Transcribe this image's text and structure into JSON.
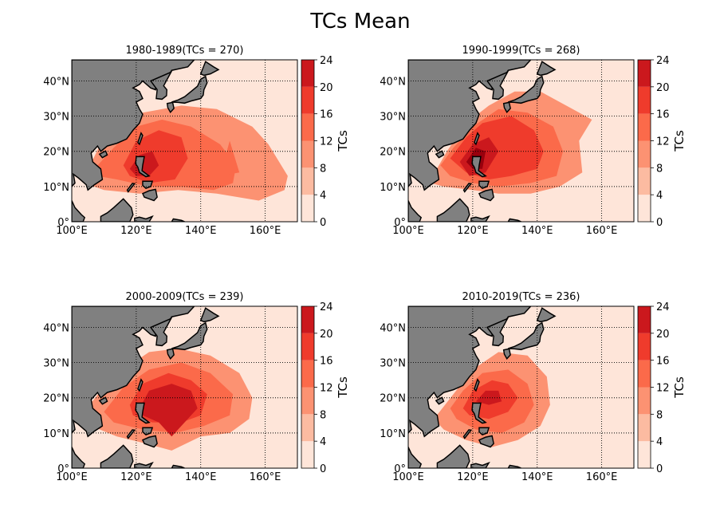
{
  "chart_data": {
    "type": "heatmap",
    "title": "TCs Mean",
    "colorbar": {
      "label": "TCs",
      "levels": [
        0,
        4,
        8,
        12,
        16,
        20,
        24
      ],
      "colors": [
        "#fee5d9",
        "#fcbba1",
        "#fc9272",
        "#fb6a4a",
        "#ef3b2c",
        "#cb181d",
        "#99000d"
      ]
    },
    "map": {
      "lon_range": [
        100,
        170
      ],
      "lat_range": [
        0,
        46
      ],
      "lon_ticks": [
        100,
        120,
        140,
        160
      ],
      "lon_tick_labels": [
        "100°E",
        "120°E",
        "140°E",
        "160°E"
      ],
      "lat_ticks": [
        0,
        10,
        20,
        30,
        40
      ],
      "lat_tick_labels": [
        "0°",
        "10°N",
        "20°N",
        "30°N",
        "40°N"
      ],
      "grid": "dotted",
      "land_color": "#808080"
    },
    "panels": [
      {
        "title": "1980-1989(TCs = 270)",
        "contours": [
          {
            "level": 4,
            "poly": [
              [
                104,
                13
              ],
              [
                110,
                24
              ],
              [
                122,
                31
              ],
              [
                134,
                33
              ],
              [
                145,
                32
              ],
              [
                156,
                27
              ],
              [
                161,
                22
              ],
              [
                167,
                13
              ],
              [
                166,
                9
              ],
              [
                158,
                6
              ],
              [
                145,
                8
              ],
              [
                133,
                9
              ],
              [
                121,
                8
              ],
              [
                110,
                9
              ],
              [
                104,
                11
              ]
            ]
          },
          {
            "level": 8,
            "poly": [
              [
                107,
                15
              ],
              [
                113,
                21
              ],
              [
                120,
                27
              ],
              [
                128,
                29
              ],
              [
                137,
                27
              ],
              [
                146,
                22
              ],
              [
                151,
                16
              ],
              [
                150,
                11
              ],
              [
                144,
                9
              ],
              [
                134,
                10
              ],
              [
                124,
                10
              ],
              [
                114,
                12
              ],
              [
                108,
                13
              ]
            ]
          },
          {
            "level": 12,
            "poly": [
              [
                116,
                16
              ],
              [
                120,
                23
              ],
              [
                127,
                26
              ],
              [
                134,
                24
              ],
              [
                136,
                18
              ],
              [
                132,
                12
              ],
              [
                124,
                11
              ],
              [
                118,
                13
              ]
            ]
          },
          {
            "level": 16,
            "poly": [
              [
                118,
                15
              ],
              [
                121,
                19
              ],
              [
                125,
                20
              ],
              [
                127,
                16
              ],
              [
                124,
                13
              ],
              [
                120,
                13
              ]
            ]
          },
          {
            "level": 8,
            "poly": [
              [
                146,
                13
              ],
              [
                149,
                23
              ],
              [
                152,
                14
              ]
            ]
          }
        ]
      },
      {
        "title": "1990-1999(TCs = 268)",
        "contours": [
          {
            "level": 4,
            "poly": [
              [
                107,
                12
              ],
              [
                112,
                20
              ],
              [
                118,
                28
              ],
              [
                125,
                33
              ],
              [
                133,
                37
              ],
              [
                141,
                37
              ],
              [
                151,
                32
              ],
              [
                157,
                29
              ],
              [
                153,
                23
              ],
              [
                154,
                14
              ],
              [
                147,
                10
              ],
              [
                138,
                8
              ],
              [
                128,
                8
              ],
              [
                120,
                9
              ],
              [
                111,
                10
              ],
              [
                107,
                11
              ]
            ]
          },
          {
            "level": 8,
            "poly": [
              [
                110,
                16
              ],
              [
                114,
                21
              ],
              [
                120,
                27
              ],
              [
                128,
                32
              ],
              [
                137,
                31
              ],
              [
                145,
                27
              ],
              [
                148,
                20
              ],
              [
                146,
                13
              ],
              [
                138,
                11
              ],
              [
                128,
                10
              ],
              [
                120,
                11
              ],
              [
                113,
                13
              ]
            ]
          },
          {
            "level": 12,
            "poly": [
              [
                113,
                18
              ],
              [
                118,
                24
              ],
              [
                123,
                28
              ],
              [
                132,
                30
              ],
              [
                139,
                26
              ],
              [
                142,
                20
              ],
              [
                140,
                15
              ],
              [
                132,
                13
              ],
              [
                125,
                12
              ],
              [
                118,
                14
              ]
            ]
          },
          {
            "level": 16,
            "poly": [
              [
                116,
                17
              ],
              [
                120,
                22
              ],
              [
                125,
                24
              ],
              [
                128,
                20
              ],
              [
                124,
                14
              ],
              [
                119,
                13
              ]
            ]
          },
          {
            "level": 20,
            "poly": [
              [
                118,
                17
              ],
              [
                121,
                21
              ],
              [
                124,
                20
              ],
              [
                123,
                15
              ],
              [
                120,
                15
              ]
            ]
          }
        ]
      },
      {
        "title": "2000-2009(TCs = 239)",
        "contours": [
          {
            "level": 4,
            "poly": [
              [
                103,
                15
              ],
              [
                109,
                22
              ],
              [
                116,
                28
              ],
              [
                124,
                33
              ],
              [
                133,
                34
              ],
              [
                143,
                32
              ],
              [
                152,
                27
              ],
              [
                156,
                20
              ],
              [
                155,
                14
              ],
              [
                149,
                10
              ],
              [
                140,
                9
              ],
              [
                131,
                5
              ],
              [
                123,
                7
              ],
              [
                114,
                9
              ],
              [
                106,
                12
              ]
            ]
          },
          {
            "level": 8,
            "poly": [
              [
                110,
                16
              ],
              [
                116,
                23
              ],
              [
                124,
                28
              ],
              [
                134,
                30
              ],
              [
                143,
                27
              ],
              [
                150,
                21
              ],
              [
                149,
                15
              ],
              [
                141,
                12
              ],
              [
                132,
                10
              ],
              [
                122,
                11
              ],
              [
                113,
                13
              ]
            ]
          },
          {
            "level": 12,
            "poly": [
              [
                118,
                18
              ],
              [
                122,
                24
              ],
              [
                130,
                27
              ],
              [
                137,
                25
              ],
              [
                142,
                21
              ],
              [
                140,
                15
              ],
              [
                134,
                13
              ],
              [
                125,
                13
              ],
              [
                119,
                15
              ]
            ]
          },
          {
            "level": 16,
            "poly": [
              [
                121,
                17
              ],
              [
                124,
                22
              ],
              [
                131,
                24
              ],
              [
                137,
                22
              ],
              [
                139,
                17
              ],
              [
                135,
                13
              ],
              [
                131,
                9
              ],
              [
                127,
                13
              ],
              [
                122,
                15
              ]
            ]
          }
        ]
      },
      {
        "title": "2010-2019(TCs = 236)",
        "contours": [
          {
            "level": 4,
            "poly": [
              [
                108,
                14
              ],
              [
                114,
                21
              ],
              [
                120,
                28
              ],
              [
                128,
                33
              ],
              [
                137,
                32
              ],
              [
                143,
                26
              ],
              [
                144,
                18
              ],
              [
                141,
                12
              ],
              [
                134,
                8
              ],
              [
                126,
                6
              ],
              [
                118,
                8
              ],
              [
                111,
                11
              ]
            ]
          },
          {
            "level": 8,
            "poly": [
              [
                113,
                17
              ],
              [
                117,
                22
              ],
              [
                123,
                27
              ],
              [
                131,
                28
              ],
              [
                137,
                24
              ],
              [
                139,
                18
              ],
              [
                136,
                13
              ],
              [
                129,
                10
              ],
              [
                121,
                11
              ],
              [
                115,
                14
              ]
            ]
          },
          {
            "level": 12,
            "poly": [
              [
                117,
                17
              ],
              [
                120,
                22
              ],
              [
                126,
                25
              ],
              [
                131,
                24
              ],
              [
                134,
                20
              ],
              [
                131,
                16
              ],
              [
                125,
                14
              ],
              [
                119,
                15
              ]
            ]
          },
          {
            "level": 16,
            "poly": [
              [
                121,
                19
              ],
              [
                124,
                22
              ],
              [
                128,
                22
              ],
              [
                129,
                19
              ],
              [
                125,
                18
              ]
            ]
          }
        ]
      }
    ]
  }
}
